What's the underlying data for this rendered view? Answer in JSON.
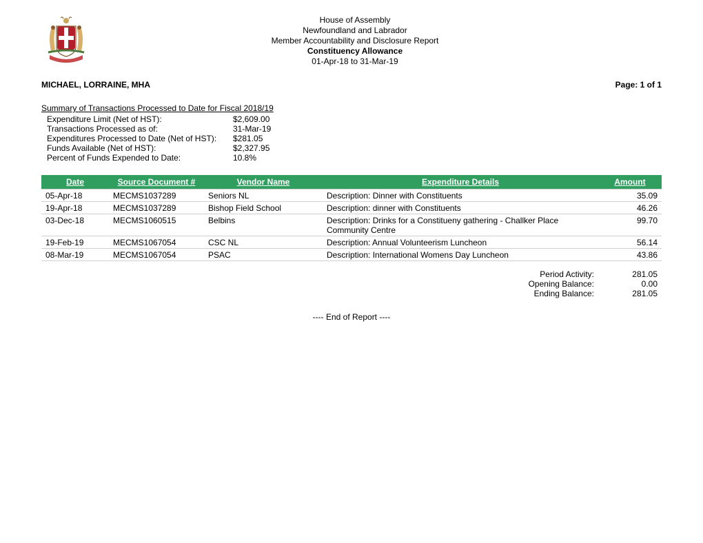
{
  "header": {
    "line1": "House of Assembly",
    "line2": "Newfoundland and Labrador",
    "line3": "Member Accountability and Disclosure Report",
    "line4": "Constituency Allowance",
    "line5": "01-Apr-18 to 31-Mar-19"
  },
  "member_name": "MICHAEL, LORRAINE, MHA",
  "page_label": "Page: 1 of 1",
  "summary": {
    "title": "Summary of Transactions Processed to Date for Fiscal 2018/19",
    "lines": [
      {
        "label": "Expenditure Limit (Net of HST):",
        "value": "$2,609.00"
      },
      {
        "label": "Transactions Processed as of:",
        "value": "31-Mar-19"
      },
      {
        "label": "Expenditures Processed to Date (Net of HST):",
        "value": "$281.05"
      },
      {
        "label": "Funds Available (Net of HST):",
        "value": "$2,327.95"
      },
      {
        "label": "Percent of Funds Expended to Date:",
        "value": "10.8%"
      }
    ]
  },
  "table": {
    "header_bg": "#2f9e5f",
    "header_fg": "#ffffff",
    "row_border": "#d0d0d0",
    "columns": {
      "date": "Date",
      "source": "Source Document #",
      "vendor": "Vendor Name",
      "details": "Expenditure Details",
      "amount": "Amount"
    },
    "rows": [
      {
        "date": "05-Apr-18",
        "source": "MECMS1037289",
        "vendor": "Seniors NL",
        "details": "Description: Dinner with Constituents",
        "amount": "35.09"
      },
      {
        "date": "19-Apr-18",
        "source": "MECMS1037289",
        "vendor": "Bishop Field School",
        "details": "Description: dinner with Constituents",
        "amount": "46.26"
      },
      {
        "date": "03-Dec-18",
        "source": "MECMS1060515",
        "vendor": "Belbins",
        "details": "Description: Drinks for a Constitueny gathering - Challker Place Community Centre",
        "amount": "99.70"
      },
      {
        "date": "19-Feb-19",
        "source": "MECMS1067054",
        "vendor": "CSC NL",
        "details": "Description: Annual Volunteerism Luncheon",
        "amount": "56.14"
      },
      {
        "date": "08-Mar-19",
        "source": "MECMS1067054",
        "vendor": "PSAC",
        "details": "Description: International Womens Day Luncheon",
        "amount": "43.86"
      }
    ]
  },
  "totals": {
    "period_activity_label": "Period Activity:",
    "period_activity_value": "281.05",
    "opening_balance_label": "Opening Balance:",
    "opening_balance_value": "0.00",
    "ending_balance_label": "Ending Balance:",
    "ending_balance_value": "281.05"
  },
  "end_of_report": "---- End of Report ----"
}
